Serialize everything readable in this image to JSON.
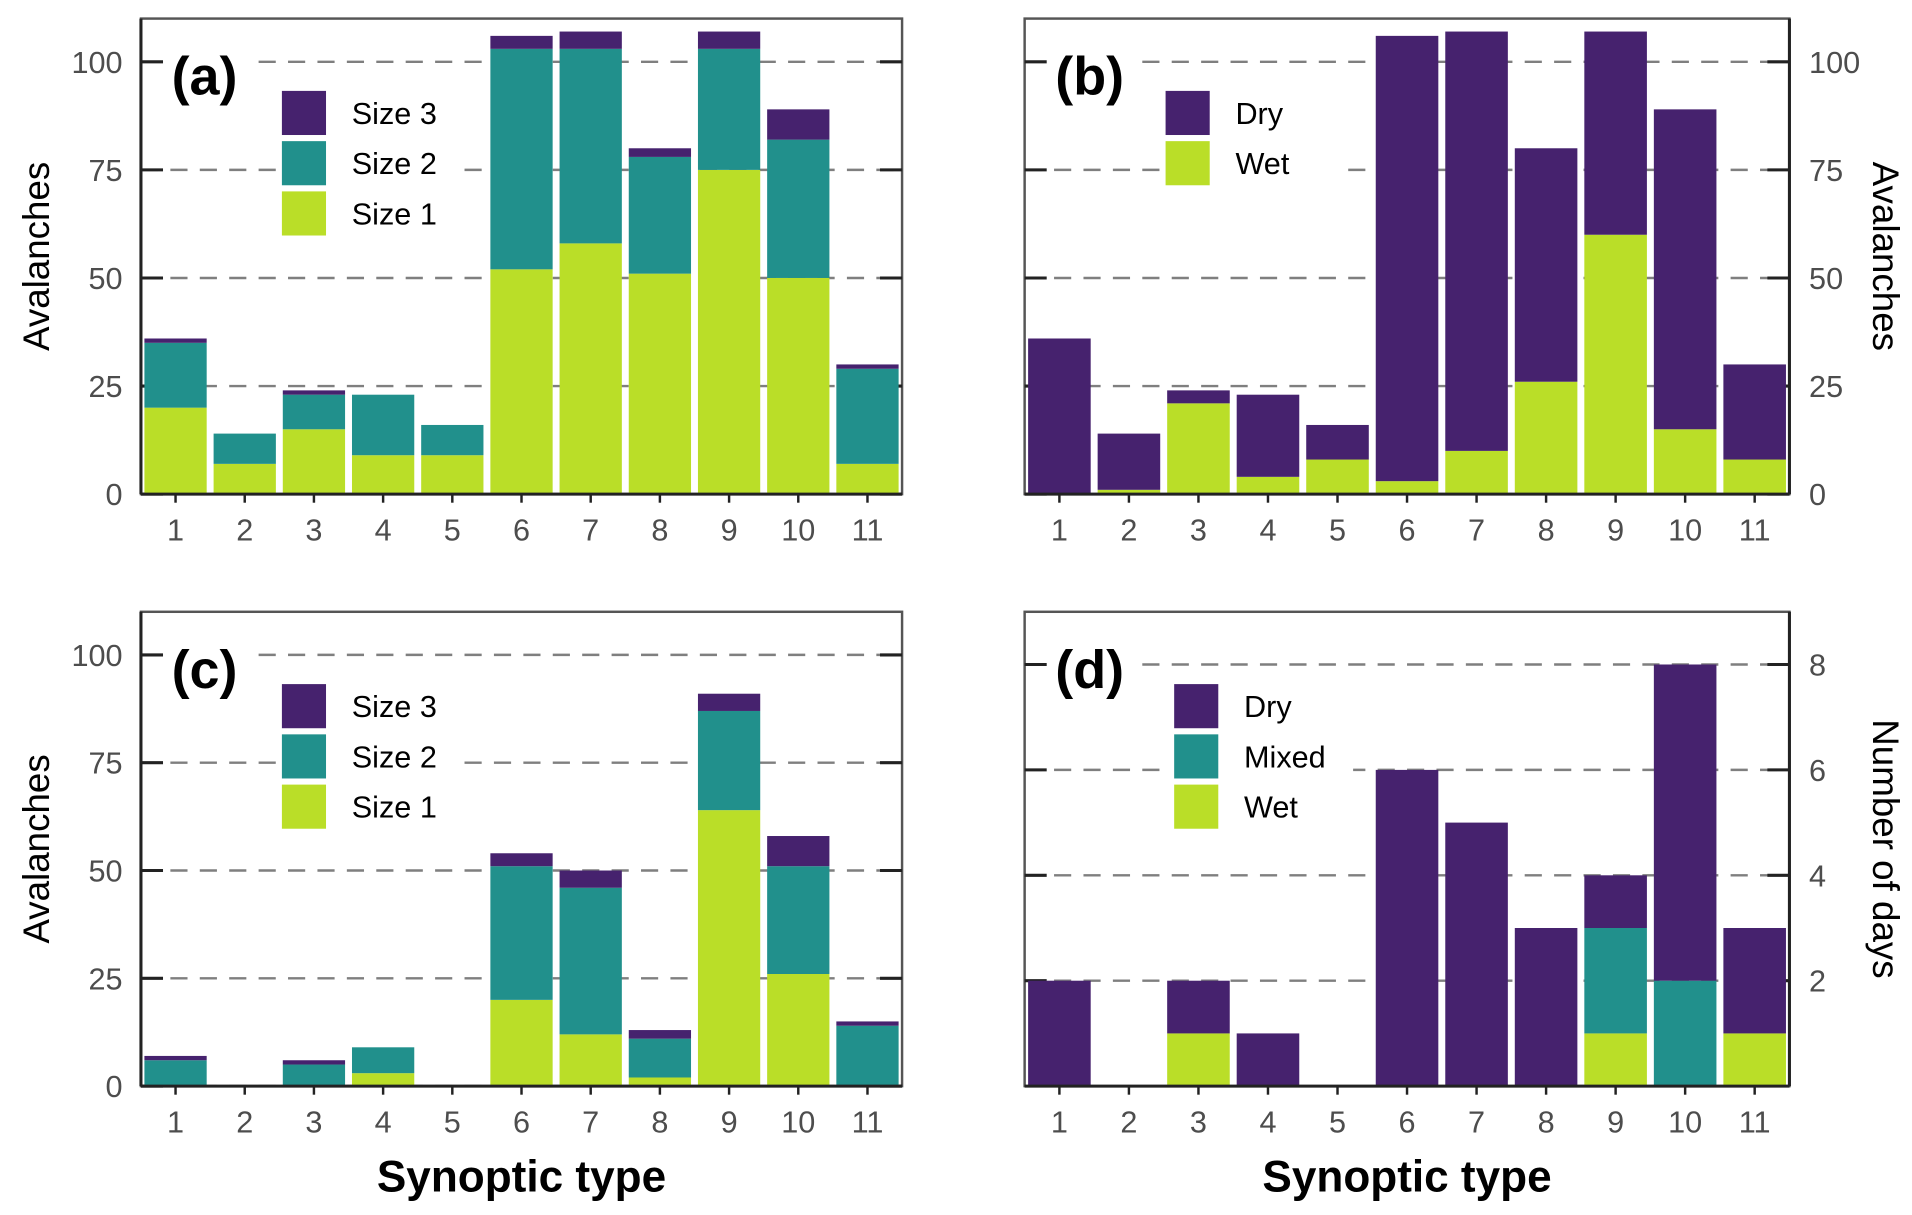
{
  "colors": {
    "dark": "#46226e",
    "mid": "#21908c",
    "light": "#bade28",
    "grid": "#7f7f7f"
  },
  "chart_data": [
    {
      "type": "bar",
      "stacked": true,
      "panel_label": "(a)",
      "categories": [
        "1",
        "2",
        "3",
        "4",
        "5",
        "6",
        "7",
        "8",
        "9",
        "10",
        "11"
      ],
      "ylabel": "Avalanches",
      "xlabel": "",
      "ylim": [
        0,
        110
      ],
      "yticks": [
        0,
        25,
        50,
        75,
        100
      ],
      "yaxis_side": "left",
      "legend": [
        "Size 3",
        "Size 2",
        "Size 1"
      ],
      "legend_placement": "top-left",
      "series": [
        {
          "name": "Size 1",
          "color": "light",
          "values": [
            20,
            7,
            15,
            9,
            9,
            52,
            58,
            51,
            75,
            50,
            7
          ]
        },
        {
          "name": "Size 2",
          "color": "mid",
          "values": [
            15,
            7,
            8,
            14,
            7,
            51,
            45,
            27,
            28,
            32,
            22
          ]
        },
        {
          "name": "Size 3",
          "color": "dark",
          "values": [
            1,
            0,
            1,
            0,
            0,
            3,
            4,
            2,
            4,
            7,
            1
          ]
        }
      ]
    },
    {
      "type": "bar",
      "stacked": true,
      "panel_label": "(b)",
      "categories": [
        "1",
        "2",
        "3",
        "4",
        "5",
        "6",
        "7",
        "8",
        "9",
        "10",
        "11"
      ],
      "ylabel": "Avalanches",
      "xlabel": "",
      "ylim": [
        0,
        110
      ],
      "yticks": [
        0,
        25,
        50,
        75,
        100
      ],
      "yaxis_side": "right",
      "legend": [
        "Dry",
        "Wet"
      ],
      "legend_placement": "top-left",
      "series": [
        {
          "name": "Wet",
          "color": "light",
          "values": [
            0,
            1,
            21,
            4,
            8,
            3,
            10,
            26,
            60,
            15,
            8
          ]
        },
        {
          "name": "Dry",
          "color": "dark",
          "values": [
            36,
            13,
            3,
            19,
            8,
            103,
            97,
            54,
            47,
            74,
            22
          ]
        }
      ]
    },
    {
      "type": "bar",
      "stacked": true,
      "panel_label": "(c)",
      "categories": [
        "1",
        "2",
        "3",
        "4",
        "5",
        "6",
        "7",
        "8",
        "9",
        "10",
        "11"
      ],
      "ylabel": "Avalanches",
      "xlabel": "Synoptic type",
      "ylim": [
        0,
        110
      ],
      "yticks": [
        0,
        25,
        50,
        75,
        100
      ],
      "yaxis_side": "left",
      "legend": [
        "Size 3",
        "Size 2",
        "Size 1"
      ],
      "legend_placement": "top-left",
      "series": [
        {
          "name": "Size 1",
          "color": "light",
          "values": [
            0,
            0,
            0,
            3,
            0,
            20,
            12,
            2,
            64,
            26,
            0
          ]
        },
        {
          "name": "Size 2",
          "color": "mid",
          "values": [
            6,
            0,
            5,
            6,
            0,
            31,
            34,
            9,
            23,
            25,
            14
          ]
        },
        {
          "name": "Size 3",
          "color": "dark",
          "values": [
            1,
            0,
            1,
            0,
            0,
            3,
            4,
            2,
            4,
            7,
            1
          ]
        }
      ]
    },
    {
      "type": "bar",
      "stacked": true,
      "panel_label": "(d)",
      "categories": [
        "1",
        "2",
        "3",
        "4",
        "5",
        "6",
        "7",
        "8",
        "9",
        "10",
        "11"
      ],
      "ylabel": "Number of days",
      "xlabel": "Synoptic type",
      "ylim": [
        0,
        9
      ],
      "yticks": [
        2,
        4,
        6,
        8
      ],
      "yaxis_side": "right",
      "legend": [
        "Dry",
        "Mixed",
        "Wet"
      ],
      "legend_placement": "top-left",
      "series": [
        {
          "name": "Wet",
          "color": "light",
          "values": [
            0,
            0,
            1,
            0,
            0,
            0,
            0,
            0,
            1,
            0,
            1
          ]
        },
        {
          "name": "Mixed",
          "color": "mid",
          "values": [
            0,
            0,
            0,
            0,
            0,
            0,
            0,
            0,
            2,
            2,
            0
          ]
        },
        {
          "name": "Dry",
          "color": "dark",
          "values": [
            2,
            0,
            1,
            1,
            0,
            6,
            5,
            3,
            1,
            6,
            2
          ]
        }
      ]
    }
  ]
}
